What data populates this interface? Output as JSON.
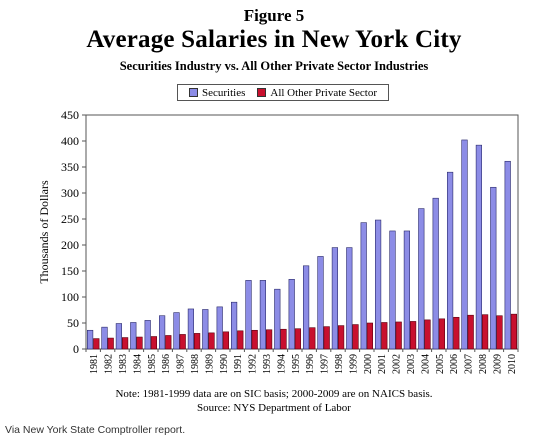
{
  "figure_label": "Figure 5",
  "note_line1": "Note: 1981-1999 data are on SIC basis; 2000-2009 are on NAICS basis.",
  "note_line2": "Source: NYS Department of Labor",
  "credit": "Via New York State Comptroller report.",
  "chart_data": {
    "type": "bar",
    "title": "Average Salaries in New York City",
    "subtitle": "Securities Industry vs. All Other Private Sector Industries",
    "xlabel": "",
    "ylabel": "Thousands of Dollars",
    "ylim": [
      0,
      450
    ],
    "yticks": [
      0,
      50,
      100,
      150,
      200,
      250,
      300,
      350,
      400,
      450
    ],
    "grid": false,
    "legend_position": "top",
    "categories": [
      "1981",
      "1982",
      "1983",
      "1984",
      "1985",
      "1986",
      "1987",
      "1988",
      "1989",
      "1990",
      "1991",
      "1992",
      "1993",
      "1994",
      "1995",
      "1996",
      "1997",
      "1998",
      "1999",
      "2000",
      "2001",
      "2002",
      "2003",
      "2004",
      "2005",
      "2006",
      "2007",
      "2008",
      "2009",
      "2010"
    ],
    "series": [
      {
        "name": "Securities",
        "color": "#8c8ce6",
        "values": [
          36,
          42,
          49,
          51,
          55,
          64,
          70,
          77,
          76,
          81,
          90,
          132,
          132,
          115,
          134,
          160,
          178,
          195,
          195,
          243,
          248,
          227,
          227,
          270,
          290,
          340,
          402,
          392,
          311,
          361
        ]
      },
      {
        "name": "All Other Private Sector",
        "color": "#c8102e",
        "values": [
          20,
          21,
          22,
          23,
          24,
          26,
          28,
          30,
          31,
          33,
          35,
          36,
          37,
          38,
          39,
          41,
          43,
          45,
          47,
          50,
          51,
          52,
          53,
          56,
          58,
          61,
          65,
          66,
          64,
          67
        ]
      }
    ]
  }
}
